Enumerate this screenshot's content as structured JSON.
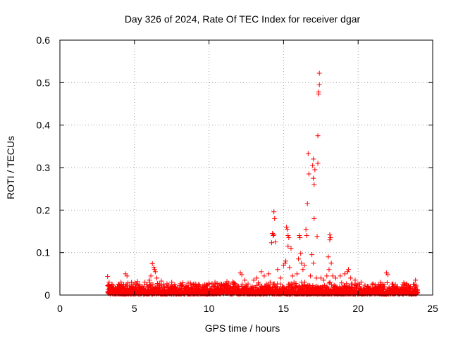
{
  "chart_data": {
    "type": "scatter",
    "title": "Day 326 of 2024, Rate Of TEC Index for receiver dgar",
    "xlabel": "GPS time / hours",
    "ylabel": "ROTI / TECUs",
    "xlim": [
      0,
      25
    ],
    "ylim": [
      0,
      0.6
    ],
    "xticks": [
      "0",
      "5",
      "10",
      "15",
      "20",
      "25"
    ],
    "yticks": [
      "0",
      "0.1",
      "0.2",
      "0.3",
      "0.4",
      "0.5",
      "0.6"
    ],
    "grid": true,
    "marker": "+",
    "colors": {
      "series": "#ff0000",
      "grid": "#a0a0a0",
      "axes": "#000000"
    },
    "baseline": {
      "x_start": 3.2,
      "x_end": 24.0,
      "typical_max": 0.03
    },
    "points": [
      [
        3.2,
        0.044
      ],
      [
        3.3,
        0.03
      ],
      [
        3.4,
        0.02
      ],
      [
        3.5,
        0.025
      ],
      [
        4.1,
        0.03
      ],
      [
        4.4,
        0.05
      ],
      [
        4.5,
        0.045
      ],
      [
        4.8,
        0.03
      ],
      [
        5.2,
        0.032
      ],
      [
        5.7,
        0.03
      ],
      [
        6.0,
        0.035
      ],
      [
        6.1,
        0.045
      ],
      [
        6.2,
        0.074
      ],
      [
        6.3,
        0.065
      ],
      [
        6.35,
        0.06
      ],
      [
        6.4,
        0.055
      ],
      [
        6.5,
        0.04
      ],
      [
        6.8,
        0.033
      ],
      [
        7.5,
        0.03
      ],
      [
        8.6,
        0.028
      ],
      [
        9.3,
        0.025
      ],
      [
        10.2,
        0.027
      ],
      [
        10.4,
        0.03
      ],
      [
        11.2,
        0.032
      ],
      [
        11.6,
        0.031
      ],
      [
        12.1,
        0.052
      ],
      [
        12.2,
        0.048
      ],
      [
        12.4,
        0.035
      ],
      [
        13.0,
        0.035
      ],
      [
        13.2,
        0.04
      ],
      [
        13.5,
        0.055
      ],
      [
        13.7,
        0.045
      ],
      [
        14.0,
        0.05
      ],
      [
        14.1,
        0.03
      ],
      [
        14.2,
        0.123
      ],
      [
        14.25,
        0.145
      ],
      [
        14.3,
        0.14
      ],
      [
        14.35,
        0.142
      ],
      [
        14.35,
        0.196
      ],
      [
        14.4,
        0.18
      ],
      [
        14.45,
        0.125
      ],
      [
        14.6,
        0.06
      ],
      [
        14.8,
        0.04
      ],
      [
        15.0,
        0.07
      ],
      [
        15.1,
        0.075
      ],
      [
        15.15,
        0.08
      ],
      [
        15.2,
        0.16
      ],
      [
        15.25,
        0.155
      ],
      [
        15.3,
        0.14
      ],
      [
        15.35,
        0.135
      ],
      [
        15.3,
        0.115
      ],
      [
        15.5,
        0.11
      ],
      [
        15.4,
        0.065
      ],
      [
        15.6,
        0.045
      ],
      [
        15.7,
        0.03
      ],
      [
        15.9,
        0.05
      ],
      [
        16.0,
        0.085
      ],
      [
        16.05,
        0.14
      ],
      [
        16.1,
        0.135
      ],
      [
        16.15,
        0.098
      ],
      [
        16.2,
        0.075
      ],
      [
        16.3,
        0.06
      ],
      [
        16.4,
        0.07
      ],
      [
        16.5,
        0.155
      ],
      [
        16.55,
        0.14
      ],
      [
        16.6,
        0.215
      ],
      [
        16.65,
        0.333
      ],
      [
        16.7,
        0.285
      ],
      [
        16.8,
        0.045
      ],
      [
        16.9,
        0.095
      ],
      [
        16.95,
        0.305
      ],
      [
        17.0,
        0.32
      ],
      [
        17.0,
        0.275
      ],
      [
        17.05,
        0.26
      ],
      [
        17.05,
        0.18
      ],
      [
        17.1,
        0.295
      ],
      [
        17.0,
        0.075
      ],
      [
        17.2,
        0.04
      ],
      [
        17.25,
        0.138
      ],
      [
        17.3,
        0.31
      ],
      [
        17.3,
        0.375
      ],
      [
        17.35,
        0.478
      ],
      [
        17.35,
        0.473
      ],
      [
        17.4,
        0.495
      ],
      [
        17.4,
        0.522
      ],
      [
        17.5,
        0.04
      ],
      [
        17.7,
        0.035
      ],
      [
        17.9,
        0.045
      ],
      [
        18.0,
        0.09
      ],
      [
        18.1,
        0.142
      ],
      [
        18.15,
        0.135
      ],
      [
        18.1,
        0.13
      ],
      [
        18.2,
        0.075
      ],
      [
        18.05,
        0.06
      ],
      [
        18.3,
        0.045
      ],
      [
        18.5,
        0.04
      ],
      [
        18.8,
        0.045
      ],
      [
        19.1,
        0.05
      ],
      [
        19.3,
        0.055
      ],
      [
        19.35,
        0.06
      ],
      [
        19.5,
        0.04
      ],
      [
        19.8,
        0.035
      ],
      [
        20.2,
        0.03
      ],
      [
        21.0,
        0.025
      ],
      [
        21.5,
        0.03
      ],
      [
        21.9,
        0.052
      ],
      [
        22.0,
        0.048
      ],
      [
        22.5,
        0.025
      ],
      [
        23.0,
        0.024
      ],
      [
        23.4,
        0.02
      ],
      [
        23.7,
        0.025
      ],
      [
        23.85,
        0.035
      ]
    ]
  }
}
